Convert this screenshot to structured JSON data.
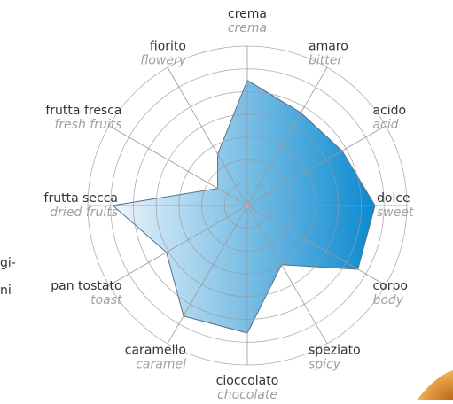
{
  "chart_data": {
    "type": "radar",
    "categories": [
      "crema",
      "amaro",
      "acido",
      "dolce",
      "corpo",
      "speziato",
      "cioccolato",
      "caramello",
      "pan tostato",
      "frutta secca",
      "frutta fresca",
      "fiorito"
    ],
    "categories_en": [
      "crema",
      "bitter",
      "acid",
      "sweet",
      "body",
      "spicy",
      "chocolate",
      "caramel",
      "toast",
      "dried fruits",
      "fresh fruits",
      "flowery"
    ],
    "values": [
      5.5,
      4.7,
      4.8,
      5.6,
      5.6,
      3.0,
      5.6,
      5.6,
      4.1,
      5.9,
      1.5,
      2.6
    ],
    "color": "#0a8ad0",
    "ylim": [
      0,
      7
    ],
    "yticks": [
      1,
      2,
      3,
      4,
      5,
      6,
      7
    ],
    "grid": true
  },
  "side_text": [
    "gi-",
    "ni"
  ]
}
